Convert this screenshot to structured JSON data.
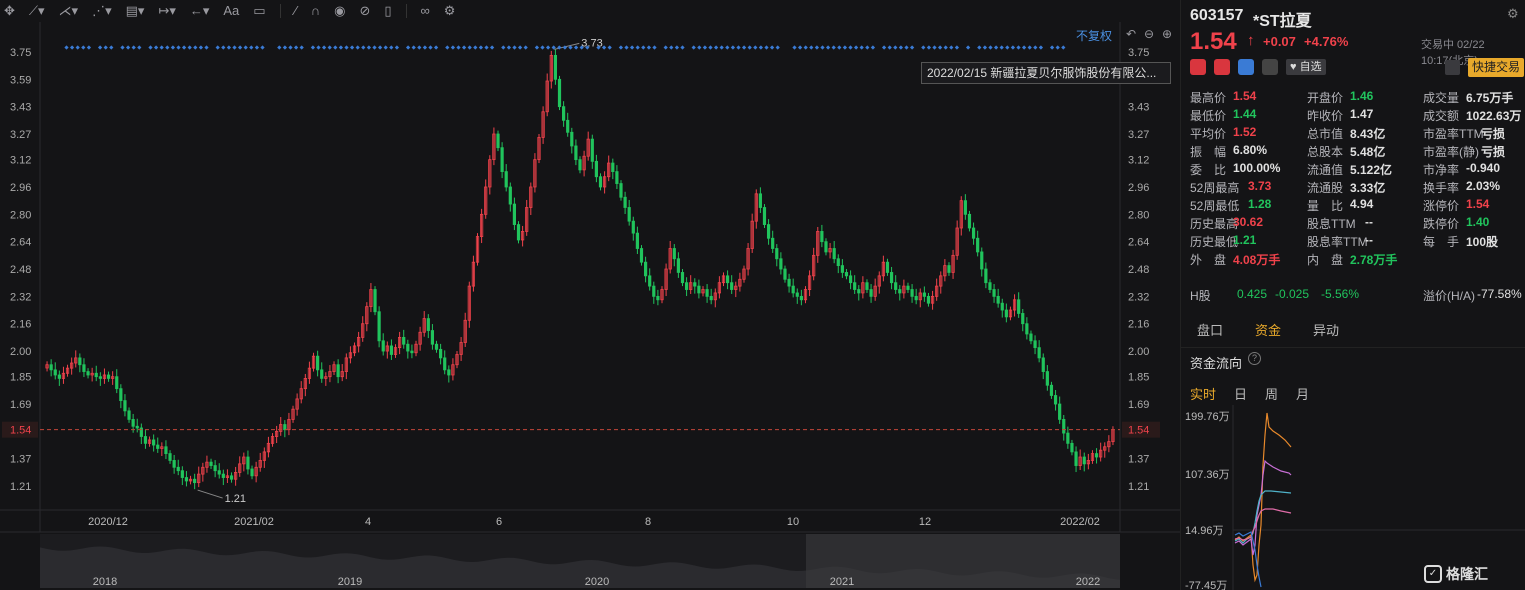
{
  "toolbar": {
    "icons": [
      "move-icon",
      "line-tool-icon",
      "draw-tool-icon",
      "pattern-tool-icon",
      "fib-tool-icon",
      "measure-tool-icon",
      "arrow-tool-icon",
      "text-tool-icon",
      "comment-icon",
      "pen-icon",
      "magnet-icon",
      "eye-icon",
      "hide-icon",
      "trash-icon",
      "link-icon",
      "settings-icon"
    ],
    "text_tool": "Aa"
  },
  "chart": {
    "fq_label": "不复权",
    "news_text": "2022/02/15 新疆拉夏贝尔服饰股份有限公...",
    "current_price_tag": "1.54",
    "high_mark": "3.73",
    "low_mark": "1.21",
    "nav_years": [
      "2018",
      "2019",
      "2020",
      "2021",
      "2022"
    ]
  },
  "chart_data": {
    "type": "candlestick",
    "title": "",
    "x_ticks": [
      "2020/12",
      "2021/02",
      "4",
      "6",
      "8",
      "10",
      "12",
      "2022/02"
    ],
    "y_ticks": [
      3.75,
      3.59,
      3.43,
      3.27,
      3.12,
      2.96,
      2.8,
      2.64,
      2.48,
      2.32,
      2.16,
      2.0,
      1.85,
      1.69,
      1.54,
      1.37,
      1.21
    ],
    "ylim": [
      1.07,
      3.82
    ],
    "period_high": 3.73,
    "period_low": 1.21,
    "last_price": 1.54,
    "close_series": [
      1.92,
      1.89,
      1.86,
      1.84,
      1.87,
      1.9,
      1.93,
      1.96,
      1.92,
      1.88,
      1.86,
      1.87,
      1.85,
      1.84,
      1.86,
      1.84,
      1.85,
      1.78,
      1.71,
      1.65,
      1.6,
      1.56,
      1.55,
      1.5,
      1.46,
      1.48,
      1.45,
      1.43,
      1.44,
      1.4,
      1.36,
      1.32,
      1.3,
      1.26,
      1.24,
      1.25,
      1.23,
      1.28,
      1.32,
      1.35,
      1.33,
      1.3,
      1.28,
      1.26,
      1.27,
      1.25,
      1.29,
      1.34,
      1.38,
      1.31,
      1.27,
      1.32,
      1.36,
      1.41,
      1.46,
      1.5,
      1.53,
      1.57,
      1.54,
      1.6,
      1.66,
      1.72,
      1.78,
      1.84,
      1.9,
      1.97,
      1.89,
      1.84,
      1.85,
      1.88,
      1.92,
      1.85,
      1.88,
      1.96,
      1.99,
      2.03,
      2.08,
      2.16,
      2.26,
      2.36,
      2.23,
      2.06,
      2.0,
      2.03,
      1.98,
      2.02,
      2.08,
      2.04,
      2.0,
      1.99,
      2.04,
      2.11,
      2.19,
      2.12,
      2.04,
      2.01,
      1.96,
      1.89,
      1.86,
      1.92,
      1.98,
      2.05,
      2.18,
      2.38,
      2.52,
      2.67,
      2.8,
      2.96,
      3.12,
      3.27,
      3.19,
      3.05,
      2.96,
      2.86,
      2.74,
      2.65,
      2.7,
      2.84,
      2.96,
      3.12,
      3.25,
      3.4,
      3.58,
      3.73,
      3.59,
      3.43,
      3.35,
      3.28,
      3.2,
      3.12,
      3.06,
      3.14,
      3.24,
      3.11,
      3.02,
      2.96,
      3.02,
      3.1,
      3.05,
      2.98,
      2.9,
      2.84,
      2.76,
      2.69,
      2.6,
      2.52,
      2.44,
      2.38,
      2.32,
      2.3,
      2.36,
      2.48,
      2.6,
      2.54,
      2.46,
      2.4,
      2.36,
      2.4,
      2.38,
      2.34,
      2.36,
      2.32,
      2.3,
      2.34,
      2.4,
      2.44,
      2.4,
      2.36,
      2.38,
      2.42,
      2.48,
      2.6,
      2.76,
      2.92,
      2.84,
      2.74,
      2.66,
      2.6,
      2.54,
      2.48,
      2.42,
      2.38,
      2.34,
      2.32,
      2.3,
      2.36,
      2.44,
      2.56,
      2.7,
      2.64,
      2.58,
      2.6,
      2.54,
      2.5,
      2.46,
      2.44,
      2.4,
      2.36,
      2.34,
      2.4,
      2.36,
      2.32,
      2.38,
      2.44,
      2.52,
      2.46,
      2.4,
      2.36,
      2.34,
      2.38,
      2.36,
      2.32,
      2.3,
      2.34,
      2.32,
      2.28,
      2.32,
      2.38,
      2.44,
      2.5,
      2.46,
      2.56,
      2.72,
      2.88,
      2.8,
      2.72,
      2.66,
      2.58,
      2.48,
      2.4,
      2.36,
      2.32,
      2.28,
      2.24,
      2.2,
      2.24,
      2.3,
      2.22,
      2.16,
      2.1,
      2.06,
      2.02,
      1.96,
      1.88,
      1.8,
      1.74,
      1.69,
      1.6,
      1.52,
      1.46,
      1.41,
      1.33,
      1.38,
      1.34,
      1.36,
      1.4,
      1.38,
      1.42,
      1.44,
      1.47,
      1.54
    ]
  },
  "quote": {
    "code": "603157",
    "name": "*ST拉夏",
    "price": "1.54",
    "arrow": "↑",
    "change": "+0.07",
    "change_pct": "+4.76%",
    "status": "交易中 02/22 10:17(北京)",
    "watch_label": "自选",
    "quick_trade": "快捷交易",
    "fields": [
      [
        {
          "l": "最高价",
          "v": "1.54",
          "c": "red"
        },
        {
          "l": "开盘价",
          "v": "1.46",
          "c": "green"
        },
        {
          "l": "成交量",
          "v": "6.75万手",
          "c": "white"
        }
      ],
      [
        {
          "l": "最低价",
          "v": "1.44",
          "c": "green"
        },
        {
          "l": "昨收价",
          "v": "1.47",
          "c": "white"
        },
        {
          "l": "成交额",
          "v": "1022.63万",
          "c": "white"
        }
      ],
      [
        {
          "l": "平均价",
          "v": "1.52",
          "c": "red"
        },
        {
          "l": "总市值",
          "v": "8.43亿",
          "c": "white"
        },
        {
          "l": "市盈率TTM",
          "v": "亏损",
          "c": "white"
        }
      ],
      [
        {
          "l": "振　幅",
          "v": "6.80%",
          "c": "white"
        },
        {
          "l": "总股本",
          "v": "5.48亿",
          "c": "white"
        },
        {
          "l": "市盈率(静)",
          "v": "亏损",
          "c": "white"
        }
      ],
      [
        {
          "l": "委　比",
          "v": "100.00%",
          "c": "white"
        },
        {
          "l": "流通值",
          "v": "5.122亿",
          "c": "white"
        },
        {
          "l": "市净率",
          "v": "-0.940",
          "c": "white"
        }
      ],
      [
        {
          "l": "52周最高",
          "v": "3.73",
          "c": "red"
        },
        {
          "l": "流通股",
          "v": "3.33亿",
          "c": "white"
        },
        {
          "l": "换手率",
          "v": "2.03%",
          "c": "white"
        }
      ],
      [
        {
          "l": "52周最低",
          "v": "1.28",
          "c": "green"
        },
        {
          "l": "量　比",
          "v": "4.94",
          "c": "white"
        },
        {
          "l": "涨停价",
          "v": "1.54",
          "c": "red"
        }
      ],
      [
        {
          "l": "历史最高",
          "v": "30.62",
          "c": "red"
        },
        {
          "l": "股息TTM",
          "v": "--",
          "c": "white"
        },
        {
          "l": "跌停价",
          "v": "1.40",
          "c": "green"
        }
      ],
      [
        {
          "l": "历史最低",
          "v": "1.21",
          "c": "green"
        },
        {
          "l": "股息率TTM",
          "v": "--",
          "c": "white"
        },
        {
          "l": "每　手",
          "v": "100股",
          "c": "white"
        }
      ],
      [
        {
          "l": "外　盘",
          "v": "4.08万手",
          "c": "red"
        },
        {
          "l": "内　盘",
          "v": "2.78万手",
          "c": "green"
        },
        {
          "l": "",
          "v": "",
          "c": "white"
        }
      ]
    ],
    "h_share": {
      "label": "H股",
      "price": "0.425",
      "change": "-0.025",
      "pct": "-5.56%",
      "premium_label": "溢价(H/A)",
      "premium": "-77.58%"
    }
  },
  "tabs": [
    "盘口",
    "资金",
    "异动"
  ],
  "active_tab": 1,
  "flow": {
    "title": "资金流向",
    "periods": [
      "实时",
      "日",
      "周",
      "月"
    ],
    "active_period": 0,
    "y_labels": [
      "199.76万",
      "107.36万",
      "14.96万",
      "-77.45万"
    ]
  },
  "logo_text": "格隆汇",
  "colors": {
    "up": "#f0424b",
    "down": "#21c45d",
    "accent": "#e8a92b",
    "link": "#4a90e2"
  }
}
